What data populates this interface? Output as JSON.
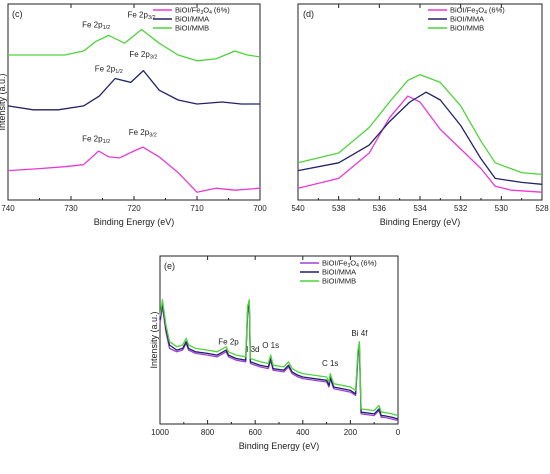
{
  "chart_data": [
    {
      "id": "c",
      "type": "line",
      "panel_label": "(c)",
      "xlabel": "Binding Energy (eV)",
      "ylabel": "Intensity (a.u.)",
      "xlim": [
        740,
        700
      ],
      "x_ticks": [
        "740",
        "730",
        "720",
        "710",
        "700"
      ],
      "legend": "top-right",
      "series": [
        {
          "name": "BiOI/Fe3O4 (6%)",
          "legend_main": "BiOI/Fe",
          "legend_sub": "3",
          "legend_after": "O",
          "legend_sub2": "4",
          "legend_tail": " (6%)",
          "color": "#e83ad6",
          "values": [
            [
              740,
              0.15
            ],
            [
              735,
              0.16
            ],
            [
              731,
              0.17
            ],
            [
              728,
              0.18
            ],
            [
              725.6,
              0.25
            ],
            [
              724,
              0.22
            ],
            [
              722.3,
              0.215
            ],
            [
              720,
              0.25
            ],
            [
              718.6,
              0.27
            ],
            [
              716,
              0.22
            ],
            [
              713,
              0.14
            ],
            [
              710,
              0.04
            ],
            [
              707,
              0.06
            ],
            [
              704,
              0.05
            ],
            [
              700,
              0.06
            ]
          ]
        },
        {
          "name": "BiOI/MMA",
          "legend_main": "BiOI/MMA",
          "color": "#22226a",
          "values": [
            [
              740,
              0.48
            ],
            [
              736,
              0.46
            ],
            [
              732,
              0.46
            ],
            [
              728,
              0.48
            ],
            [
              725.5,
              0.53
            ],
            [
              723,
              0.62
            ],
            [
              720.5,
              0.6
            ],
            [
              718.5,
              0.66
            ],
            [
              716,
              0.56
            ],
            [
              713,
              0.51
            ],
            [
              710,
              0.49
            ],
            [
              706,
              0.5
            ],
            [
              703,
              0.49
            ],
            [
              700,
              0.49
            ]
          ]
        },
        {
          "name": "BiOI/MMB",
          "legend_main": "BiOI/MMB",
          "color": "#4ed43a",
          "values": [
            [
              740,
              0.74
            ],
            [
              736,
              0.74
            ],
            [
              731,
              0.74
            ],
            [
              728,
              0.76
            ],
            [
              726,
              0.81
            ],
            [
              724,
              0.84
            ],
            [
              721.5,
              0.8
            ],
            [
              718.8,
              0.87
            ],
            [
              716,
              0.8
            ],
            [
              713,
              0.74
            ],
            [
              710,
              0.71
            ],
            [
              707,
              0.72
            ],
            [
              704,
              0.76
            ],
            [
              702,
              0.74
            ],
            [
              700,
              0.73
            ]
          ]
        }
      ],
      "annotations": [
        {
          "main": "Fe 2p",
          "sub": "1/2",
          "series": 0,
          "x": 726.0,
          "dy": -0.04
        },
        {
          "main": "Fe 2p",
          "sub": "3/2",
          "series": 0,
          "x": 718.6,
          "dy": -0.04
        },
        {
          "main": "Fe 2p",
          "sub": "1/2",
          "series": 1,
          "x": 724.0,
          "dy": -0.05
        },
        {
          "main": "Fe 2p",
          "sub": "3/2",
          "series": 1,
          "x": 718.5,
          "dy": -0.05
        },
        {
          "main": "Fe 2p",
          "sub": "1/2",
          "series": 2,
          "x": 726.0,
          "dy": -0.05
        },
        {
          "main": "Fe 2p",
          "sub": "3/2",
          "series": 2,
          "x": 718.8,
          "dy": -0.04
        }
      ]
    },
    {
      "id": "d",
      "type": "line",
      "panel_label": "(d)",
      "xlabel": "Binding Energy (eV)",
      "xlim": [
        540,
        528
      ],
      "x_ticks": [
        "540",
        "538",
        "536",
        "534",
        "532",
        "530",
        "528"
      ],
      "legend": "top-right",
      "series": [
        {
          "name": "BiOI/Fe3O4 (6%)",
          "legend_main": "BiOI/Fe",
          "legend_sub": "3",
          "legend_after": "O",
          "legend_sub2": "4",
          "legend_tail": " (6%)",
          "color": "#e83ad6",
          "values": [
            [
              540,
              0.06
            ],
            [
              538,
              0.11
            ],
            [
              536.5,
              0.24
            ],
            [
              535.5,
              0.42
            ],
            [
              534.6,
              0.53
            ],
            [
              534,
              0.5
            ],
            [
              533,
              0.36
            ],
            [
              532,
              0.26
            ],
            [
              531,
              0.16
            ],
            [
              530.3,
              0.07
            ],
            [
              529.5,
              0.05
            ],
            [
              528,
              0.04
            ]
          ]
        },
        {
          "name": "BiOI/MMA",
          "legend_main": "BiOI/MMA",
          "color": "#22226a",
          "values": [
            [
              540,
              0.15
            ],
            [
              538,
              0.19
            ],
            [
              536.5,
              0.28
            ],
            [
              535.5,
              0.4
            ],
            [
              534.5,
              0.5
            ],
            [
              533.7,
              0.55
            ],
            [
              533,
              0.51
            ],
            [
              532,
              0.38
            ],
            [
              531,
              0.21
            ],
            [
              530.3,
              0.11
            ],
            [
              529,
              0.09
            ],
            [
              528,
              0.08
            ]
          ]
        },
        {
          "name": "BiOI/MMB",
          "legend_main": "BiOI/MMB",
          "color": "#4ed43a",
          "values": [
            [
              540,
              0.19
            ],
            [
              538,
              0.24
            ],
            [
              536.5,
              0.37
            ],
            [
              535.5,
              0.5
            ],
            [
              534.6,
              0.61
            ],
            [
              534,
              0.64
            ],
            [
              533,
              0.6
            ],
            [
              532,
              0.48
            ],
            [
              531,
              0.3
            ],
            [
              530.3,
              0.19
            ],
            [
              529,
              0.14
            ],
            [
              528,
              0.13
            ]
          ]
        }
      ]
    },
    {
      "id": "e",
      "type": "line",
      "panel_label": "(e)",
      "xlabel": "Binding Energy (eV)",
      "ylabel": "Intensity (a.u.)",
      "xlim": [
        1000,
        0
      ],
      "x_ticks": [
        "1000",
        "800",
        "600",
        "400",
        "200",
        "0"
      ],
      "legend": "top-right",
      "series": [
        {
          "name": "BiOI/Fe3O4 (6%)",
          "legend_main": "BiOI/Fe",
          "legend_sub": "3",
          "legend_after": "O",
          "legend_sub2": "4",
          "legend_tail": " (6%)",
          "color": "#a040d8",
          "values": [
            [
              1000,
              0.6
            ],
            [
              990,
              0.7
            ],
            [
              975,
              0.55
            ],
            [
              960,
              0.45
            ],
            [
              930,
              0.43
            ],
            [
              905,
              0.44
            ],
            [
              890,
              0.48
            ],
            [
              880,
              0.44
            ],
            [
              850,
              0.42
            ],
            [
              800,
              0.41
            ],
            [
              760,
              0.4
            ],
            [
              722,
              0.43
            ],
            [
              712,
              0.4
            ],
            [
              680,
              0.38
            ],
            [
              640,
              0.37
            ],
            [
              632,
              0.66
            ],
            [
              625,
              0.7
            ],
            [
              620,
              0.36
            ],
            [
              580,
              0.34
            ],
            [
              545,
              0.33
            ],
            [
              535,
              0.38
            ],
            [
              525,
              0.32
            ],
            [
              480,
              0.31
            ],
            [
              460,
              0.34
            ],
            [
              445,
              0.3
            ],
            [
              420,
              0.28
            ],
            [
              400,
              0.27
            ],
            [
              300,
              0.25
            ],
            [
              290,
              0.22
            ],
            [
              285,
              0.27
            ],
            [
              270,
              0.21
            ],
            [
              200,
              0.19
            ],
            [
              178,
              0.17
            ],
            [
              168,
              0.4
            ],
            [
              162,
              0.45
            ],
            [
              155,
              0.06
            ],
            [
              100,
              0.05
            ],
            [
              80,
              0.08
            ],
            [
              70,
              0.04
            ],
            [
              60,
              0.04
            ],
            [
              25,
              0.03
            ],
            [
              0,
              0.02
            ]
          ]
        },
        {
          "name": "BiOI/MMA",
          "legend_main": "BiOI/MMA",
          "color": "#202068",
          "values": [
            [
              1000,
              0.62
            ],
            [
              990,
              0.72
            ],
            [
              975,
              0.57
            ],
            [
              960,
              0.47
            ],
            [
              930,
              0.44
            ],
            [
              905,
              0.45
            ],
            [
              890,
              0.49
            ],
            [
              880,
              0.45
            ],
            [
              850,
              0.43
            ],
            [
              800,
              0.42
            ],
            [
              760,
              0.41
            ],
            [
              722,
              0.44
            ],
            [
              712,
              0.41
            ],
            [
              680,
              0.39
            ],
            [
              640,
              0.38
            ],
            [
              632,
              0.68
            ],
            [
              625,
              0.72
            ],
            [
              620,
              0.37
            ],
            [
              580,
              0.35
            ],
            [
              545,
              0.34
            ],
            [
              535,
              0.39
            ],
            [
              525,
              0.33
            ],
            [
              480,
              0.32
            ],
            [
              460,
              0.35
            ],
            [
              445,
              0.31
            ],
            [
              420,
              0.29
            ],
            [
              400,
              0.28
            ],
            [
              300,
              0.26
            ],
            [
              290,
              0.23
            ],
            [
              285,
              0.28
            ],
            [
              270,
              0.22
            ],
            [
              200,
              0.2
            ],
            [
              178,
              0.18
            ],
            [
              168,
              0.42
            ],
            [
              162,
              0.47
            ],
            [
              155,
              0.07
            ],
            [
              100,
              0.06
            ],
            [
              80,
              0.09
            ],
            [
              70,
              0.05
            ],
            [
              60,
              0.05
            ],
            [
              25,
              0.04
            ],
            [
              0,
              0.03
            ]
          ]
        },
        {
          "name": "BiOI/MMB",
          "legend_main": "BiOI/MMB",
          "color": "#4ed43a",
          "values": [
            [
              1000,
              0.64
            ],
            [
              990,
              0.74
            ],
            [
              975,
              0.59
            ],
            [
              960,
              0.49
            ],
            [
              930,
              0.46
            ],
            [
              905,
              0.47
            ],
            [
              890,
              0.51
            ],
            [
              880,
              0.47
            ],
            [
              850,
              0.45
            ],
            [
              800,
              0.44
            ],
            [
              760,
              0.43
            ],
            [
              722,
              0.46
            ],
            [
              712,
              0.43
            ],
            [
              680,
              0.41
            ],
            [
              640,
              0.4
            ],
            [
              632,
              0.7
            ],
            [
              625,
              0.74
            ],
            [
              620,
              0.39
            ],
            [
              580,
              0.37
            ],
            [
              545,
              0.36
            ],
            [
              535,
              0.41
            ],
            [
              525,
              0.35
            ],
            [
              480,
              0.34
            ],
            [
              460,
              0.37
            ],
            [
              445,
              0.33
            ],
            [
              420,
              0.31
            ],
            [
              400,
              0.3
            ],
            [
              300,
              0.28
            ],
            [
              290,
              0.25
            ],
            [
              285,
              0.3
            ],
            [
              270,
              0.24
            ],
            [
              200,
              0.22
            ],
            [
              178,
              0.2
            ],
            [
              168,
              0.44
            ],
            [
              162,
              0.49
            ],
            [
              155,
              0.09
            ],
            [
              100,
              0.08
            ],
            [
              80,
              0.11
            ],
            [
              70,
              0.07
            ],
            [
              60,
              0.07
            ],
            [
              25,
              0.06
            ],
            [
              0,
              0.05
            ]
          ]
        }
      ],
      "annotations": [
        {
          "main": "Fe 2p",
          "series": 0,
          "x": 712
        },
        {
          "main": "I 3d",
          "series": 0,
          "x": 610
        },
        {
          "main": "O 1s",
          "series": 0,
          "x": 535
        },
        {
          "main": "C 1s",
          "series": 0,
          "x": 285
        },
        {
          "main": "Bi 4f",
          "series": 0,
          "x": 162
        }
      ]
    }
  ]
}
